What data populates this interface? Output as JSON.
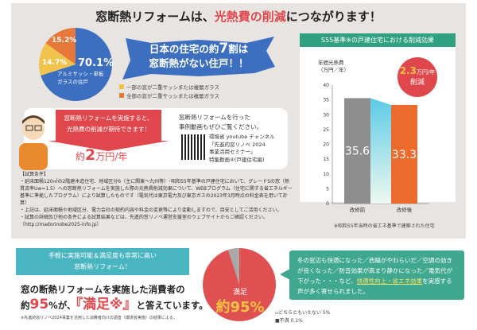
{
  "title": {
    "main": "窓断熱リフォームは、",
    "highlight": "光熱費の削減",
    "end": "につながります！"
  },
  "burst": {
    "line1a": "日本の住宅の約",
    "line1b": "7",
    "line1c": "割は",
    "line2": "窓断熱がない住戸！！"
  },
  "pie": {
    "slices": [
      {
        "label": "70.1%",
        "value": 70.1,
        "color": "#3c6fc0"
      },
      {
        "label": "14.7%",
        "value": 14.7,
        "color": "#f0c44c"
      },
      {
        "label": "15.2%",
        "value": 15.2,
        "color": "#e8773a"
      }
    ],
    "caption": "アルミサッシ・単板ガラスの住戸",
    "legend": [
      "一部の窓が二重サッシまたは複層ガラス",
      "全部の窓が二重サッシまたは複層ガラス"
    ]
  },
  "chart_data": {
    "type": "bar",
    "title": "S55基準※の戸建住宅における削減効果",
    "ylabel": "年間光熱費（万円／年）",
    "categories": [
      "改修前",
      "改修後"
    ],
    "values": [
      35.6,
      33.3
    ],
    "ylim": [
      0,
      40
    ],
    "yticks": [
      0,
      5,
      10,
      15,
      20,
      25,
      30,
      35,
      40
    ],
    "colors": [
      "#8e8e8e",
      "#ec6a2c"
    ],
    "badge_value": "2.3",
    "badge_unit": "万円/年",
    "badge_label": "削減",
    "note": "※昭和55年当時の省エネ基準で建築された住宅"
  },
  "callout": {
    "line1": "窓断熱リフォームを実施すると、",
    "line2": "光熱費の削減が期待できます！",
    "saving_pre": "約",
    "saving_num": "2",
    "saving_unit": "万円/年"
  },
  "video": {
    "line1": "窓断熱リフォームを行った",
    "line2": "事例動画もぜひご覧ください。",
    "ch1": "環境省 youtube チャンネル",
    "ch2": "「先進的窓リノベ 2024",
    "ch3": "事業活用セミナー」",
    "ch4": "特集動画④(戸建住宅編)"
  },
  "notes": [
    "【試算条件】",
    "・延床面積120㎡の2階建木造住宅、地域区分6（主に関東～九州等）･昭和55年基準の戸建住宅において、グレードSの窓（熱貫流率Uw=1.5）への窓断熱リフォームを実施した際の光熱費削減効果について、WEBプログラム（住宅に関する省エネルギー基準に準拠したプログラム）により試算したものです（電気代は東京電力及び東京ガスの2023年3月時点の料金表を用いて計算）",
    "・上記は、延床面積や地域区分、電力会社の契約内容や料金の変更等により変動しますので、目安としてご活用ください。",
    "・試算の詳細及び他の条件による試算結果などは、先進的窓リノベ運営支援室のウェブサイトからご確認ください。（http://madorinobe2025-info.jp）"
  ],
  "bottom": {
    "banner1": "手軽に実施可能＆満足度も非常に高い",
    "banner2": "窓断熱リフォーム！",
    "text1": "窓の断熱リフォームを実施した消費者の",
    "pre": "約",
    "pct": "95",
    "mid": "%が、",
    "quote": "『満足※』",
    "end": "と答えています。",
    "foot": "※先進的窓リノベ2024事業を活用した消費者向けの調査（環境省実施）の結果による。"
  },
  "satisfaction": {
    "label": "満足",
    "value_text": "約95%",
    "values": {
      "satisfied": 95,
      "neutral": 5,
      "dissatisfied": 0.1
    },
    "legend": [
      "どちらともいえない 5%",
      "不満 0.1%"
    ]
  },
  "voices": {
    "text": "冬の窓辺も快適になった／西陽がやわらいだ／空調の効きが良くなった／防音効果が高まり静かになった／電気代が下がった・・・など、",
    "hl": "快適性向上・省エネ効果",
    "end": "を実感する声が多く寄せられました。"
  }
}
